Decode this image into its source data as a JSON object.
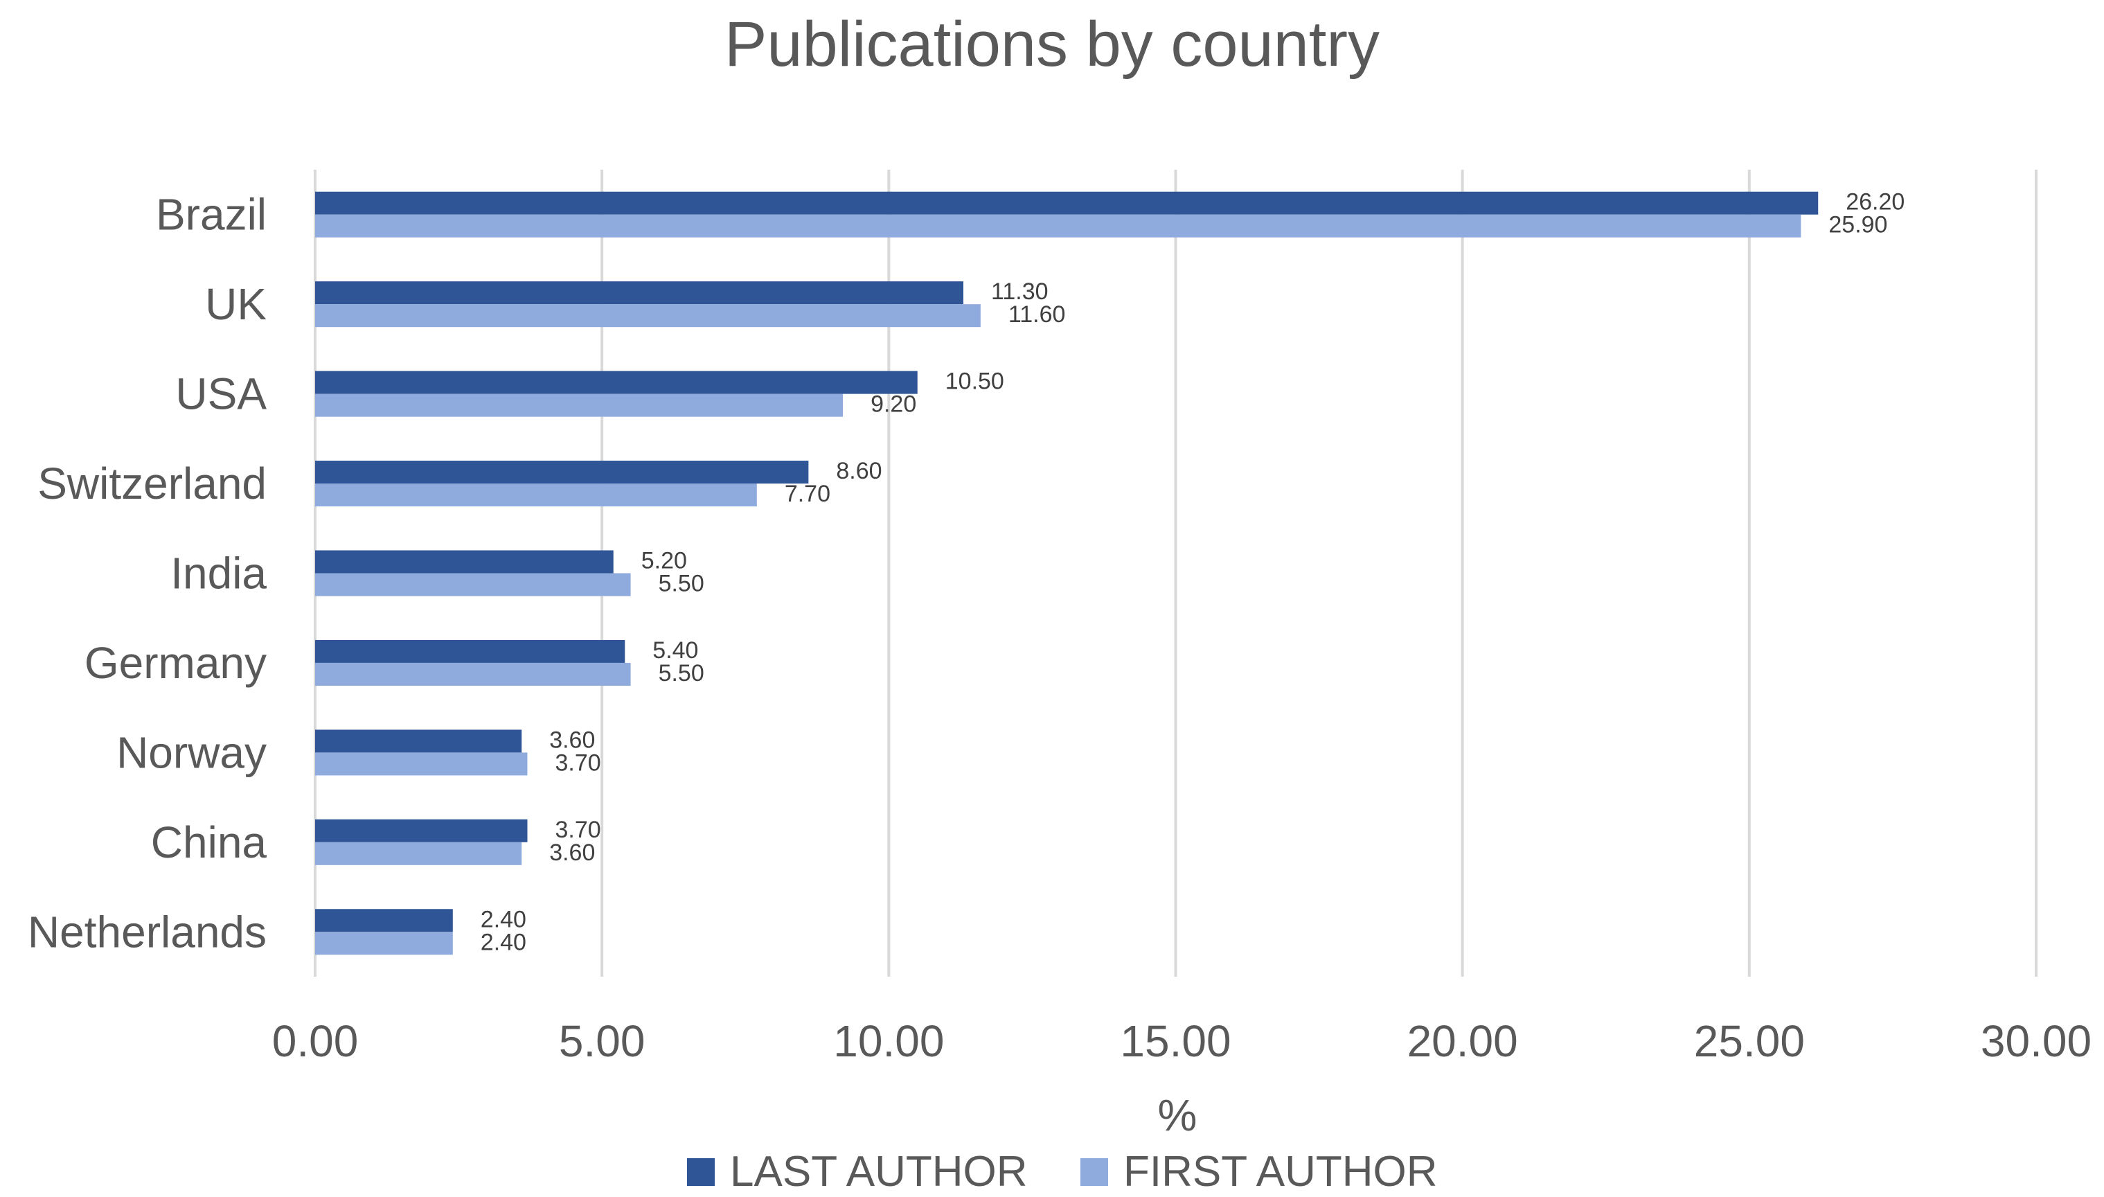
{
  "chart_data": {
    "type": "bar",
    "orientation": "horizontal",
    "title": "Publications by country",
    "xlabel": "%",
    "ylabel": "",
    "xlim": [
      0,
      30
    ],
    "x_ticks": [
      "0.00",
      "5.00",
      "10.00",
      "15.00",
      "20.00",
      "25.00",
      "30.00"
    ],
    "grid": true,
    "legend_position": "bottom",
    "categories": [
      "Brazil",
      "UK",
      "USA",
      "Switzerland",
      "India",
      "Germany",
      "Norway",
      "China",
      "Netherlands"
    ],
    "series": [
      {
        "name": "LAST AUTHOR",
        "color": "#2f5597",
        "values": [
          26.2,
          11.3,
          10.5,
          8.6,
          5.2,
          5.4,
          3.6,
          3.7,
          2.4
        ],
        "labels": [
          "26.20",
          "11.30",
          "10.50",
          "8.60",
          "5.20",
          "5.40",
          "3.60",
          "3.70",
          "2.40"
        ]
      },
      {
        "name": "FIRST AUTHOR",
        "color": "#8faadc",
        "values": [
          25.9,
          11.6,
          9.2,
          7.7,
          5.5,
          5.5,
          3.7,
          3.6,
          2.4
        ],
        "labels": [
          "25.90",
          "11.60",
          "9.20",
          "7.70",
          "5.50",
          "5.50",
          "3.70",
          "3.60",
          "2.40"
        ]
      }
    ]
  }
}
